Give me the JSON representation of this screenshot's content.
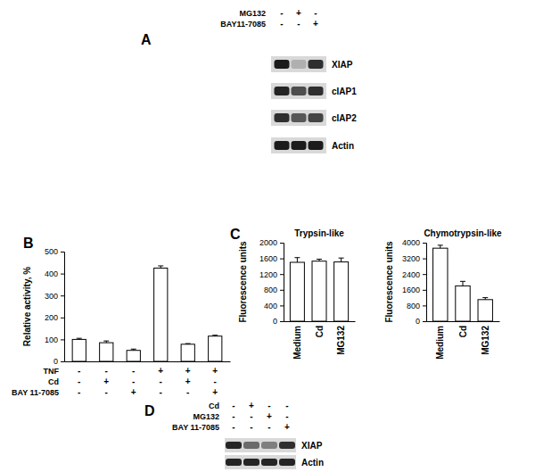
{
  "chart_data": [
    {
      "type": "bar",
      "annotations": [
        "B"
      ],
      "y_label": "Relative activity, %",
      "categories": [
        null,
        null,
        null,
        null,
        null,
        null
      ],
      "values": [
        100,
        85,
        50,
        425,
        78,
        115
      ],
      "errors": [
        5,
        8,
        6,
        10,
        3,
        4
      ],
      "color": "#ffffff",
      "ylim": [
        0,
        500
      ],
      "yticks": [
        0,
        100,
        200,
        300,
        400,
        500
      ],
      "conditions": [
        {
          "name": "TNF",
          "values": [
            "-",
            "-",
            "-",
            "+",
            "+",
            "+"
          ]
        },
        {
          "name": "Cd",
          "values": [
            "-",
            "+",
            "-",
            "-",
            "+",
            "-"
          ]
        },
        {
          "name": "BAY 11-7085",
          "values": [
            "-",
            "-",
            "+",
            "-",
            "-",
            "+"
          ]
        }
      ]
    },
    {
      "type": "bar",
      "annotations": [
        "C"
      ],
      "title": "Trypsin-like",
      "y_label": "Fluorescence units",
      "categories": [
        "Medium",
        "Cd",
        "MG132"
      ],
      "values": [
        1500,
        1530,
        1510
      ],
      "errors": [
        120,
        50,
        100
      ],
      "color": "#ffffff",
      "ylim": [
        0,
        2000
      ],
      "yticks": [
        0,
        400,
        800,
        1200,
        1600,
        2000
      ]
    },
    {
      "type": "bar",
      "title": "Chymotrypsin-like",
      "y_label": "Fluorescence units",
      "categories": [
        "Medium",
        "Cd",
        "MG132"
      ],
      "values": [
        3720,
        1800,
        1100
      ],
      "errors": [
        150,
        230,
        100
      ],
      "color": "#ffffff",
      "ylim": [
        0,
        4000
      ],
      "yticks": [
        0,
        800,
        1600,
        2400,
        3200,
        4000
      ]
    }
  ],
  "blots": [
    {
      "annotations": [
        "A"
      ],
      "conditions": [
        {
          "name": "MG132",
          "values": [
            "-",
            "+",
            "-"
          ]
        },
        {
          "name": "BAY11-7085",
          "values": [
            "-",
            "-",
            "+"
          ]
        }
      ],
      "bands": [
        {
          "name": "XIAP",
          "intensity": [
            0.95,
            0.2,
            0.85
          ]
        },
        {
          "name": "cIAP1",
          "intensity": [
            0.9,
            0.7,
            0.85
          ]
        },
        {
          "name": "cIAP2",
          "intensity": [
            0.85,
            0.65,
            0.75
          ]
        },
        {
          "name": "Actin",
          "intensity": [
            0.95,
            0.95,
            0.95
          ]
        }
      ]
    },
    {
      "annotations": [
        "D"
      ],
      "conditions": [
        {
          "name": "Cd",
          "values": [
            "-",
            "+",
            "-",
            "-"
          ]
        },
        {
          "name": "MG132",
          "values": [
            "-",
            "-",
            "+",
            "-"
          ]
        },
        {
          "name": "BAY 11-7085",
          "values": [
            "-",
            "-",
            "-",
            "+"
          ]
        }
      ],
      "bands": [
        {
          "name": "XIAP",
          "intensity": [
            0.9,
            0.55,
            0.45,
            0.85
          ]
        },
        {
          "name": "Actin",
          "intensity": [
            0.9,
            0.9,
            0.9,
            0.9
          ]
        }
      ]
    }
  ]
}
